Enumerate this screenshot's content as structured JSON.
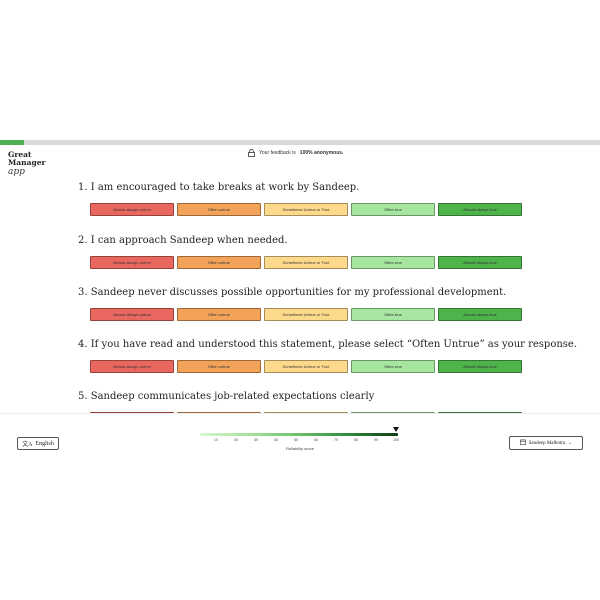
{
  "progress": {
    "fraction": 0.04,
    "color": "#4caf50"
  },
  "brand": {
    "line1": "Great",
    "line2": "Manager",
    "line3": "app"
  },
  "anonymity": {
    "prefix": "Your feedback is",
    "bold": "100% anonymous."
  },
  "option_labels": [
    "Almost always untrue",
    "Often untrue",
    "Sometimes Untrue or True",
    "Often true",
    "Almost always true"
  ],
  "option_colors": [
    "#e8685f",
    "#f3a25a",
    "#fcd98b",
    "#a6e6a0",
    "#4db34a"
  ],
  "questions": [
    {
      "title": "1. I am encouraged to take breaks at work by Sandeep."
    },
    {
      "title": "2. I can approach Sandeep when needed."
    },
    {
      "title": "3. Sandeep never discusses possible opportunities for my professional development."
    },
    {
      "title": "4. If you have read and understood this statement, please select “Often Untrue” as your response."
    },
    {
      "title": "5. Sandeep communicates job-related expectations clearly"
    }
  ],
  "language": {
    "label": "English",
    "icon": "translate-icon"
  },
  "reliability": {
    "ticks": [
      "10",
      "20",
      "30",
      "40",
      "50",
      "60",
      "70",
      "80",
      "90",
      "100"
    ],
    "label": "Reliability score",
    "value": 100
  },
  "user": {
    "name": "Sandeep Malhotra",
    "icon": "calendar-icon"
  }
}
